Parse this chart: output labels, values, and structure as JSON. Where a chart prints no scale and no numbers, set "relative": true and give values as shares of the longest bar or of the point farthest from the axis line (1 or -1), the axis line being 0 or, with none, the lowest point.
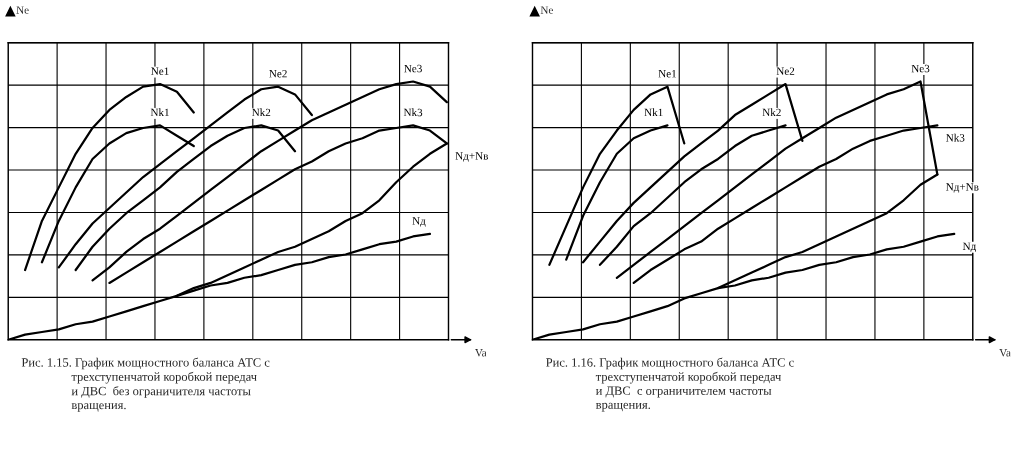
{
  "chart_data": [
    {
      "type": "line",
      "relative": true,
      "grid": true,
      "legend": false,
      "tick_labels": false,
      "xlabel": "Va",
      "ylabel": "Ne",
      "categories": [
        null,
        null,
        null,
        null,
        null,
        null,
        null,
        null,
        null,
        null,
        null,
        null,
        null,
        null,
        null,
        null,
        null,
        null,
        null,
        null,
        null,
        null,
        null,
        null,
        null,
        null,
        null
      ],
      "series": [
        {
          "name": "Ne1",
          "color": "#000000",
          "values": [
            null,
            0.27,
            0.46,
            0.59,
            0.72,
            0.82,
            0.89,
            0.94,
            0.98,
            0.99,
            0.96,
            0.88,
            null,
            null,
            null,
            null,
            null,
            null,
            null,
            null,
            null,
            null,
            null,
            null,
            null,
            null,
            null
          ]
        },
        {
          "name": "Nk1",
          "color": "#000000",
          "values": [
            null,
            null,
            0.3,
            0.46,
            0.59,
            0.7,
            0.76,
            0.8,
            0.82,
            0.83,
            0.79,
            0.75,
            null,
            null,
            null,
            null,
            null,
            null,
            null,
            null,
            null,
            null,
            null,
            null,
            null,
            null,
            null
          ]
        },
        {
          "name": "Ne2",
          "color": "#000000",
          "values": [
            null,
            null,
            null,
            0.28,
            0.37,
            0.45,
            0.51,
            0.57,
            0.63,
            0.68,
            0.73,
            0.78,
            0.83,
            0.88,
            0.93,
            0.97,
            0.98,
            0.95,
            0.87,
            null,
            null,
            null,
            null,
            null,
            null,
            null,
            null
          ]
        },
        {
          "name": "Nk2",
          "color": "#000000",
          "values": [
            null,
            null,
            null,
            null,
            0.27,
            0.36,
            0.43,
            0.49,
            0.54,
            0.59,
            0.65,
            0.7,
            0.75,
            0.79,
            0.82,
            0.83,
            0.81,
            0.73,
            null,
            null,
            null,
            null,
            null,
            null,
            null,
            null,
            null
          ]
        },
        {
          "name": "Ne3",
          "color": "#000000",
          "values": [
            null,
            null,
            null,
            null,
            null,
            0.23,
            0.28,
            0.34,
            0.39,
            0.43,
            0.48,
            0.53,
            0.58,
            0.63,
            0.68,
            0.73,
            0.77,
            0.81,
            0.85,
            0.88,
            0.91,
            0.94,
            0.97,
            0.99,
            1.0,
            0.98,
            0.92
          ]
        },
        {
          "name": "Nk3",
          "color": "#000000",
          "values": [
            null,
            null,
            null,
            null,
            null,
            null,
            0.22,
            0.26,
            0.3,
            0.34,
            0.38,
            0.42,
            0.46,
            0.5,
            0.54,
            0.58,
            0.62,
            0.66,
            0.69,
            0.73,
            0.76,
            0.78,
            0.81,
            0.82,
            0.83,
            0.81,
            0.76
          ]
        },
        {
          "name": "Nд+Nв",
          "color": "#000000",
          "values": [
            0.0,
            0.02,
            0.03,
            0.04,
            0.06,
            0.07,
            0.09,
            0.11,
            0.13,
            0.15,
            0.17,
            0.2,
            0.22,
            0.25,
            0.28,
            0.31,
            0.34,
            0.36,
            0.39,
            0.42,
            0.46,
            0.49,
            0.54,
            0.61,
            0.67,
            0.72,
            0.76
          ]
        },
        {
          "name": "Nд",
          "color": "#000000",
          "values": [
            null,
            null,
            null,
            null,
            null,
            null,
            null,
            null,
            null,
            null,
            0.17,
            0.19,
            0.21,
            0.22,
            0.24,
            0.25,
            0.27,
            0.29,
            0.3,
            0.32,
            0.33,
            0.35,
            0.37,
            0.38,
            0.4,
            0.41,
            null
          ]
        }
      ],
      "annotations": [
        "Рис. 1.15. График мощностного баланса АТС с\n                трехступенчатой коробкой передач\n                и ДВС  без ограничителя частоты\n                вращения."
      ]
    },
    {
      "type": "line",
      "relative": true,
      "grid": true,
      "legend": false,
      "tick_labels": false,
      "xlabel": "Va",
      "ylabel": "Ne",
      "categories": [
        null,
        null,
        null,
        null,
        null,
        null,
        null,
        null,
        null,
        null,
        null,
        null,
        null,
        null,
        null,
        null,
        null,
        null,
        null,
        null,
        null,
        null,
        null,
        null,
        null,
        null,
        null
      ],
      "series": [
        {
          "name": "Ne1",
          "color": "#000000",
          "values": [
            null,
            0.29,
            0.44,
            0.59,
            0.72,
            0.81,
            0.89,
            0.95,
            0.98,
            0.76,
            null,
            null,
            null,
            null,
            null,
            null,
            null,
            null,
            null,
            null,
            null,
            null,
            null,
            null,
            null,
            null,
            null
          ]
        },
        {
          "name": "Nk1",
          "color": "#000000",
          "values": [
            null,
            null,
            0.31,
            0.48,
            0.61,
            0.72,
            0.78,
            0.81,
            0.83,
            null,
            null,
            null,
            null,
            null,
            null,
            null,
            null,
            null,
            null,
            null,
            null,
            null,
            null,
            null,
            null,
            null,
            null
          ]
        },
        {
          "name": "Ne2",
          "color": "#000000",
          "values": [
            null,
            null,
            null,
            0.3,
            0.38,
            0.46,
            0.53,
            0.59,
            0.65,
            0.71,
            0.76,
            0.81,
            0.87,
            0.91,
            0.95,
            0.99,
            0.77,
            null,
            null,
            null,
            null,
            null,
            null,
            null,
            null,
            null,
            null
          ]
        },
        {
          "name": "Nk2",
          "color": "#000000",
          "values": [
            null,
            null,
            null,
            null,
            0.29,
            0.36,
            0.44,
            0.49,
            0.55,
            0.61,
            0.66,
            0.7,
            0.75,
            0.79,
            0.81,
            0.83,
            null,
            null,
            null,
            null,
            null,
            null,
            null,
            null,
            null,
            null,
            null
          ]
        },
        {
          "name": "Ne3",
          "color": "#000000",
          "values": [
            null,
            null,
            null,
            null,
            null,
            0.24,
            0.29,
            0.34,
            0.39,
            0.44,
            0.49,
            0.54,
            0.59,
            0.64,
            0.69,
            0.74,
            0.78,
            0.82,
            0.86,
            0.89,
            0.92,
            0.95,
            0.97,
            1.0,
            0.64,
            null,
            null
          ]
        },
        {
          "name": "Nk3",
          "color": "#000000",
          "values": [
            null,
            null,
            null,
            null,
            null,
            null,
            0.22,
            0.27,
            0.31,
            0.35,
            0.38,
            0.43,
            0.47,
            0.51,
            0.55,
            0.59,
            0.63,
            0.67,
            0.7,
            0.74,
            0.77,
            0.79,
            0.81,
            0.82,
            0.83,
            null,
            null
          ]
        },
        {
          "name": "Nд+Nв",
          "color": "#000000",
          "values": [
            0.0,
            0.02,
            0.03,
            0.04,
            0.06,
            0.07,
            0.09,
            0.11,
            0.13,
            0.16,
            0.18,
            0.2,
            0.23,
            0.26,
            0.29,
            0.32,
            0.34,
            0.37,
            0.4,
            0.43,
            0.46,
            0.49,
            0.54,
            0.6,
            0.64,
            null,
            null
          ]
        },
        {
          "name": "Nд",
          "color": "#000000",
          "values": [
            null,
            null,
            null,
            null,
            null,
            null,
            null,
            null,
            null,
            null,
            null,
            0.2,
            0.21,
            0.23,
            0.24,
            0.26,
            0.27,
            0.29,
            0.3,
            0.32,
            0.33,
            0.35,
            0.36,
            0.38,
            0.4,
            0.41,
            null
          ]
        }
      ],
      "annotations": [
        "Рис. 1.16. График мощностного баланса АТС с\n                трехступенчатой коробкой передач\n                и ДВС  с ограничителем частоты\n                вращения."
      ]
    }
  ]
}
